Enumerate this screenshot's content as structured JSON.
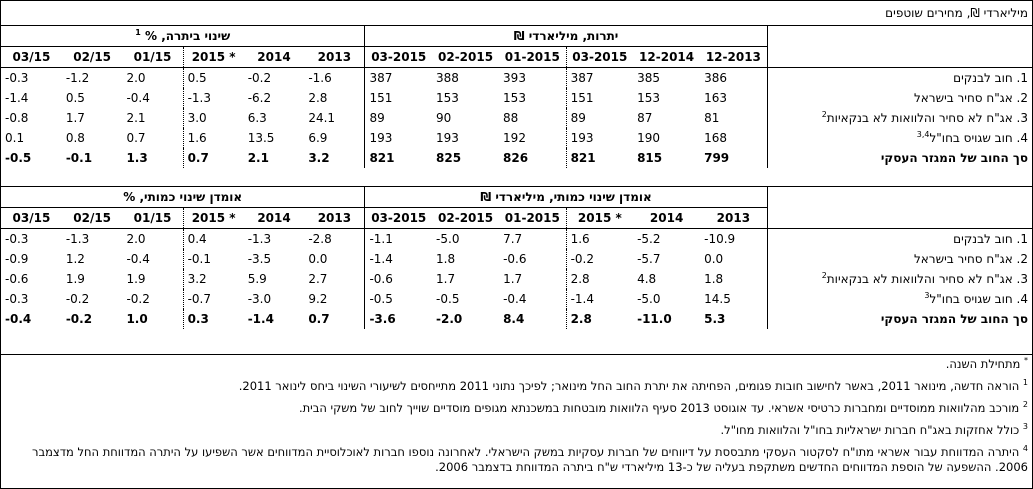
{
  "unit_label": "מיליארדי ₪, מחירים שוטפים",
  "table1": {
    "group_left": "יתרות, מיליארדי ₪",
    "group_right": "שינוי ביתרה, %",
    "group_right_sup": "1",
    "cols_left": [
      "12-2013",
      "12-2014",
      "03-2015",
      "01-2015",
      "02-2015",
      "03-2015"
    ],
    "cols_right": [
      "2013",
      "2014",
      "2015 *",
      "01/15",
      "02/15",
      "03/15"
    ],
    "rows": [
      {
        "label": "1. חוב לבנקים",
        "sup": "",
        "v": [
          "386",
          "385",
          "387",
          "393",
          "388",
          "387"
        ],
        "p": [
          "-1.6",
          "-0.2",
          "0.5",
          "2.0",
          "-1.2",
          "-0.3"
        ]
      },
      {
        "label": "2. אג\"ח סחיר בישראל",
        "sup": "",
        "v": [
          "163",
          "153",
          "151",
          "153",
          "153",
          "151"
        ],
        "p": [
          "2.8",
          "-6.2",
          "-1.3",
          "-0.4",
          "0.5",
          "-1.4"
        ]
      },
      {
        "label": "3. אג\"ח לא סחיר והלוואות לא בנקאיות",
        "sup": "2",
        "v": [
          "81",
          "87",
          "89",
          "88",
          "90",
          "89"
        ],
        "p": [
          "24.1",
          "6.3",
          "3.0",
          "2.1",
          "1.7",
          "-0.8"
        ]
      },
      {
        "label": "4. חוב שגויס בחו\"ל",
        "sup": "3,4",
        "v": [
          "168",
          "190",
          "193",
          "192",
          "193",
          "193"
        ],
        "p": [
          "6.9",
          "13.5",
          "1.6",
          "0.7",
          "0.8",
          "0.1"
        ]
      }
    ],
    "total": {
      "label": "סך החוב של המגזר העסקי",
      "v": [
        "799",
        "815",
        "821",
        "826",
        "825",
        "821"
      ],
      "p": [
        "3.2",
        "2.1",
        "0.7",
        "1.3",
        "-0.1",
        "-0.5"
      ]
    }
  },
  "table2": {
    "group_left": "אומדן שינוי כמותי, מיליארדי ₪",
    "group_right": "אומדן שינוי כמותי, %",
    "cols_left": [
      "2013",
      "2014",
      "2015 *",
      "01-2015",
      "02-2015",
      "03-2015"
    ],
    "cols_right": [
      "2013",
      "2014",
      "2015 *",
      "01/15",
      "02/15",
      "03/15"
    ],
    "rows": [
      {
        "label": "1. חוב לבנקים",
        "sup": "",
        "v": [
          "-10.9",
          "-5.2",
          "1.6",
          "7.7",
          "-5.0",
          "-1.1"
        ],
        "p": [
          "-2.8",
          "-1.3",
          "0.4",
          "2.0",
          "-1.3",
          "-0.3"
        ]
      },
      {
        "label": "2. אג\"ח סחיר בישראל",
        "sup": "",
        "v": [
          "0.0",
          "-5.7",
          "-0.2",
          "-0.6",
          "1.8",
          "-1.4"
        ],
        "p": [
          "0.0",
          "-3.5",
          "-0.1",
          "-0.4",
          "1.2",
          "-0.9"
        ]
      },
      {
        "label": "3. אג\"ח לא סחיר והלוואות לא בנקאיות",
        "sup": "2",
        "v": [
          "1.8",
          "4.8",
          "2.8",
          "1.7",
          "1.7",
          "-0.6"
        ],
        "p": [
          "2.7",
          "5.9",
          "3.2",
          "1.9",
          "1.9",
          "-0.6"
        ]
      },
      {
        "label": "4. חוב שגויס בחו\"ל",
        "sup": "3",
        "v": [
          "14.5",
          "-5.0",
          "-1.4",
          "-0.4",
          "-0.5",
          "-0.5"
        ],
        "p": [
          "9.2",
          "-3.0",
          "-0.7",
          "-0.2",
          "-0.2",
          "-0.3"
        ]
      }
    ],
    "total": {
      "label": "סך החוב של המגזר העסקי",
      "v": [
        "5.3",
        "-11.0",
        "2.8",
        "8.4",
        "-2.0",
        "-3.6"
      ],
      "p": [
        "0.7",
        "-1.4",
        "0.3",
        "1.0",
        "-0.2",
        "-0.4"
      ]
    }
  },
  "notes": [
    {
      "mark": "*",
      "text": "מתחילת השנה."
    },
    {
      "mark": "1",
      "text": "הוראה חדשה, מינואר 2011, באשר לחישוב חובות פגומים, הפחיתה את יתרת החוב החל מינואר; לפיכך נתוני 2011 מתייחסים לשיעורי השינוי ביחס לינואר 2011."
    },
    {
      "mark": "2",
      "text": "מורכב מהלוואות ממוסדיים ומחברות כרטיסי אשראי. עד אוגוסט 2013 סעיף הלוואות מובטחות במשכנתא מגופים מוסדיים שוייך לחוב של משקי הבית."
    },
    {
      "mark": "3",
      "text": "כולל אחזקות באג\"ח חברות ישראליות בחו\"ל והלוואות מחו\"ל."
    },
    {
      "mark": "4",
      "text": "היתרה המדווחת עבור אשראי מתו\"ח לסקטור העסקי מתבססת על דיווחים של חברות עסקיות במשק הישראלי. לאחרונה נוספו חברות לאוכלוסיית המדווחים אשר השפיעו על היתרה המדווחת החל מדצמבר 2006. ההשפעה של הוספת המדווחים החדשים משתקפת בעליה של כ-13 מיליארדי ש\"ח ביתרה המדווחת בדצמבר 2006."
    }
  ]
}
